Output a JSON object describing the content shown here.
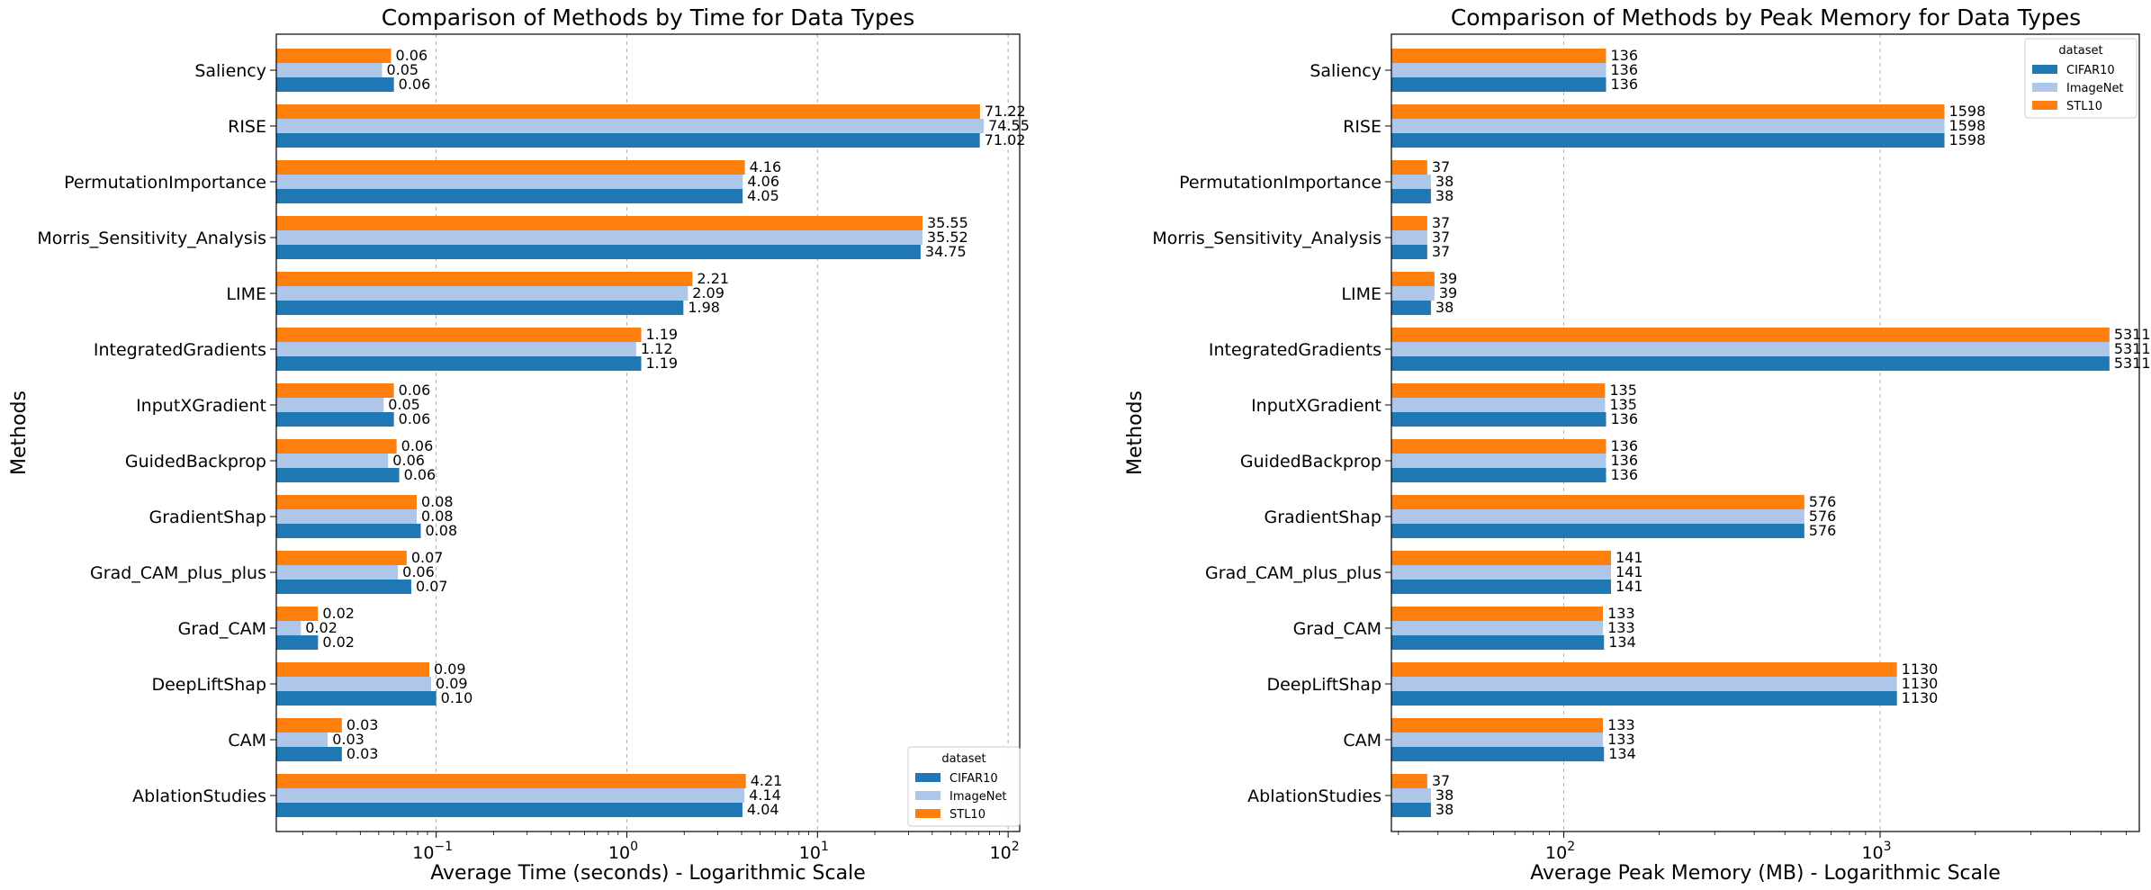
{
  "colors": {
    "CIFAR10": "#1f77b4",
    "ImageNet": "#aec7e8",
    "STL10": "#ff7f0e"
  },
  "chart_data": [
    {
      "type": "bar",
      "orientation": "horizontal",
      "xscale": "log",
      "title": "Comparison of Methods by Time for Data Types",
      "xlabel": "Average Time (seconds) - Logarithmic Scale",
      "ylabel": "Methods",
      "xlim": [
        0.0145,
        115
      ],
      "xticks": [
        0.1,
        1,
        10,
        100
      ],
      "xtick_labels": [
        [
          "10",
          "−1"
        ],
        [
          "10",
          "0"
        ],
        [
          "10",
          "1"
        ],
        [
          "10",
          "2"
        ]
      ],
      "grid": "x-major-dashed",
      "legend_title": "dataset",
      "legend_position": "lower-right",
      "categories": [
        "Saliency",
        "RISE",
        "PermutationImportance",
        "Morris_Sensitivity_Analysis",
        "LIME",
        "IntegratedGradients",
        "InputXGradient",
        "GuidedBackprop",
        "GradientShap",
        "Grad_CAM_plus_plus",
        "Grad_CAM",
        "DeepLiftShap",
        "CAM",
        "AblationStudies"
      ],
      "series": [
        {
          "name": "CIFAR10",
          "values": [
            0.06,
            71.02,
            4.05,
            34.75,
            1.98,
            1.19,
            0.06,
            0.064,
            0.083,
            0.074,
            0.024,
            0.1,
            0.032,
            4.04
          ],
          "labels": [
            "0.06",
            "71.02",
            "4.05",
            "34.75",
            "1.98",
            "1.19",
            "0.06",
            "0.06",
            "0.08",
            "0.07",
            "0.02",
            "0.10",
            "0.03",
            "4.04"
          ]
        },
        {
          "name": "ImageNet",
          "values": [
            0.052,
            74.55,
            4.06,
            35.52,
            2.09,
            1.12,
            0.053,
            0.056,
            0.079,
            0.063,
            0.0195,
            0.094,
            0.027,
            4.14
          ],
          "labels": [
            "0.05",
            "74.55",
            "4.06",
            "35.52",
            "2.09",
            "1.12",
            "0.05",
            "0.06",
            "0.08",
            "0.06",
            "0.02",
            "0.09",
            "0.03",
            "4.14"
          ]
        },
        {
          "name": "STL10",
          "values": [
            0.058,
            71.22,
            4.16,
            35.55,
            2.21,
            1.19,
            0.06,
            0.062,
            0.079,
            0.07,
            0.024,
            0.092,
            0.032,
            4.21
          ],
          "labels": [
            "0.06",
            "71.22",
            "4.16",
            "35.55",
            "2.21",
            "1.19",
            "0.06",
            "0.06",
            "0.08",
            "0.07",
            "0.02",
            "0.09",
            "0.03",
            "4.21"
          ]
        }
      ]
    },
    {
      "type": "bar",
      "orientation": "horizontal",
      "xscale": "log",
      "title": "Comparison of Methods by Peak Memory for Data Types",
      "xlabel": "Average Peak Memory (MB) - Logarithmic Scale",
      "ylabel": "Methods",
      "xlim": [
        28.5,
        6600
      ],
      "xticks": [
        100,
        1000
      ],
      "xtick_labels": [
        [
          "10",
          "2"
        ],
        [
          "10",
          "3"
        ]
      ],
      "grid": "x-major-dashed",
      "legend_title": "dataset",
      "legend_position": "upper-right",
      "categories": [
        "Saliency",
        "RISE",
        "PermutationImportance",
        "Morris_Sensitivity_Analysis",
        "LIME",
        "IntegratedGradients",
        "InputXGradient",
        "GuidedBackprop",
        "GradientShap",
        "Grad_CAM_plus_plus",
        "Grad_CAM",
        "DeepLiftShap",
        "CAM",
        "AblationStudies"
      ],
      "series": [
        {
          "name": "CIFAR10",
          "values": [
            136,
            1598,
            38,
            37,
            38,
            5311,
            136,
            136,
            576,
            141,
            134,
            1130,
            134,
            38
          ],
          "labels": [
            "136",
            "1598",
            "38",
            "37",
            "38",
            "5311",
            "136",
            "136",
            "576",
            "141",
            "134",
            "1130",
            "134",
            "38"
          ]
        },
        {
          "name": "ImageNet",
          "values": [
            136,
            1598,
            38,
            37,
            39,
            5311,
            135,
            136,
            576,
            141,
            133,
            1130,
            133,
            38
          ],
          "labels": [
            "136",
            "1598",
            "38",
            "37",
            "39",
            "5311",
            "135",
            "136",
            "576",
            "141",
            "133",
            "1130",
            "133",
            "38"
          ]
        },
        {
          "name": "STL10",
          "values": [
            136,
            1598,
            37,
            37,
            39,
            5311,
            135,
            136,
            576,
            141,
            133,
            1130,
            133,
            37
          ],
          "labels": [
            "136",
            "1598",
            "37",
            "37",
            "39",
            "5311",
            "135",
            "136",
            "576",
            "141",
            "133",
            "1130",
            "133",
            "37"
          ]
        }
      ]
    }
  ]
}
